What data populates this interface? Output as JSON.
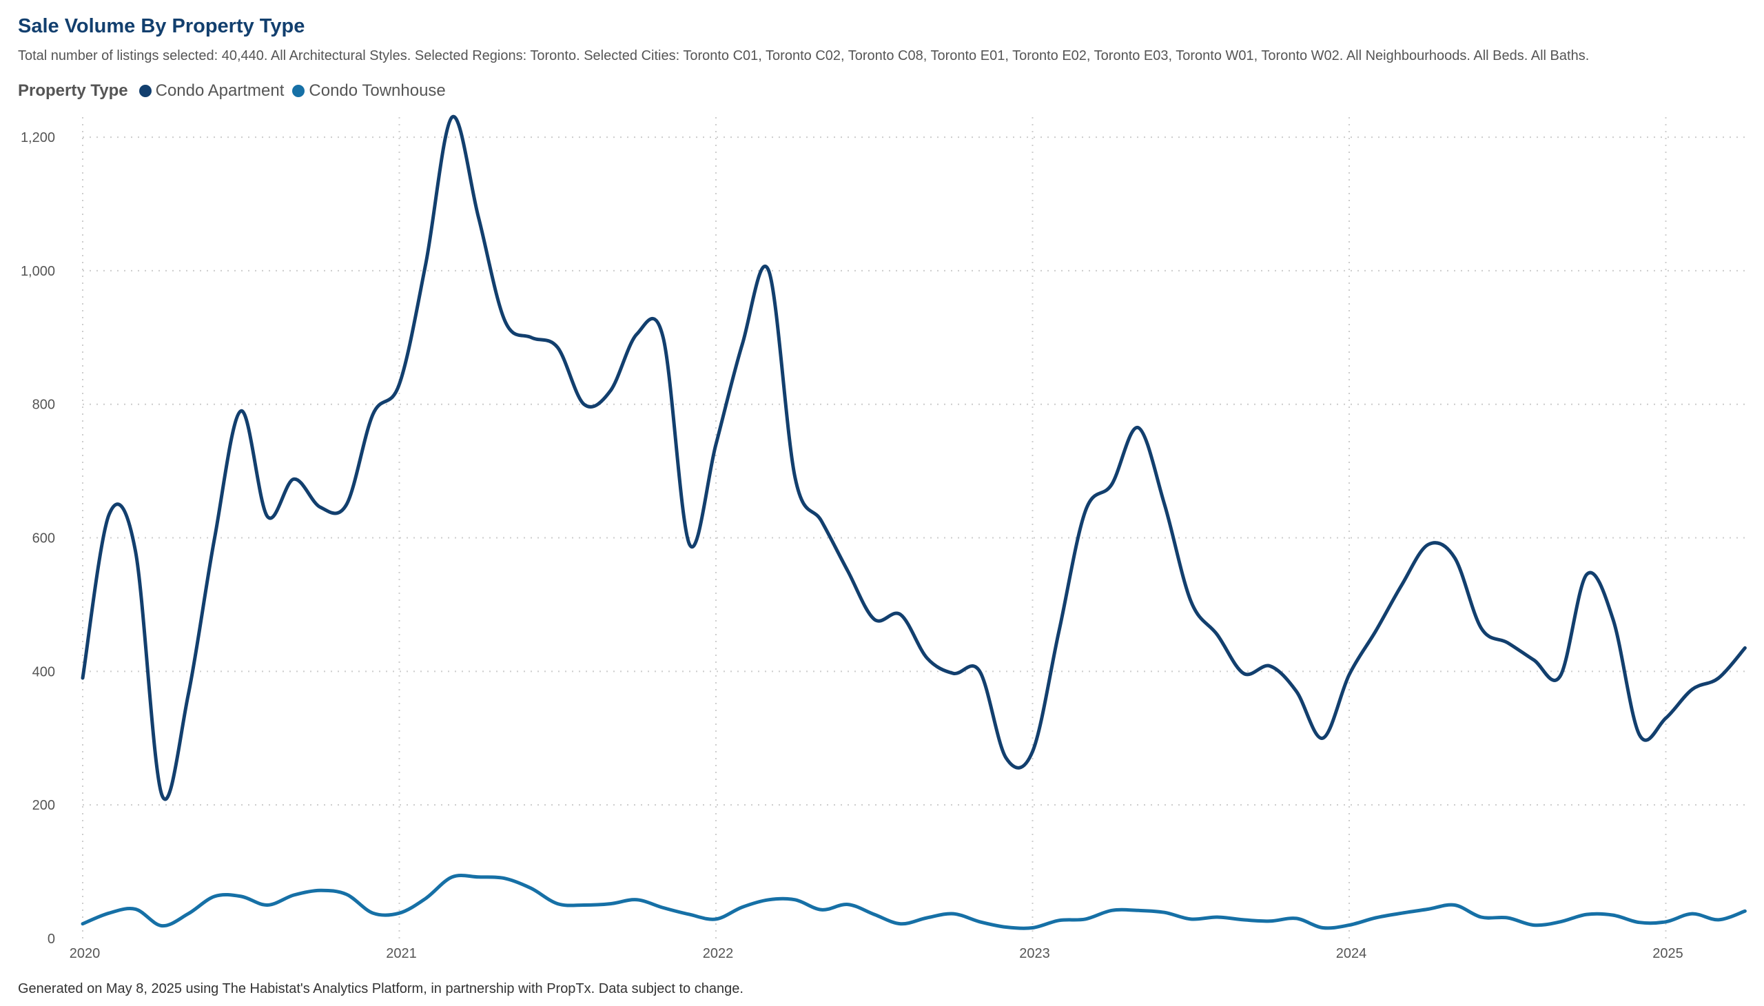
{
  "header": {
    "title": "Sale Volume By Property Type",
    "subtitle": "Total number of listings selected: 40,440. All Architectural Styles. Selected Regions: Toronto. Selected Cities: Toronto C01, Toronto C02, Toronto C08, Toronto E01, Toronto E02, Toronto E03, Toronto W01, Toronto W02. All Neighbourhoods. All Beds. All Baths."
  },
  "legend": {
    "title": "Property Type",
    "placement": "top-left"
  },
  "footer": {
    "text": "Generated on May 8, 2025 using The Habistat's Analytics Platform, in partnership with PropTx. Data subject to change."
  },
  "chart_data": {
    "type": "line",
    "title": "Sale Volume By Property Type",
    "xlabel": "",
    "ylabel": "",
    "grid": true,
    "x_range": [
      "2020-01",
      "2025-04"
    ],
    "ylim": [
      0,
      1230
    ],
    "y_ticks": [
      0,
      200,
      400,
      600,
      800,
      1000,
      1200
    ],
    "y_tick_labels": [
      "0",
      "200",
      "400",
      "600",
      "800",
      "1,000",
      "1,200"
    ],
    "x_tick_labels": [
      "2020",
      "2021",
      "2022",
      "2023",
      "2024",
      "2025"
    ],
    "x": [
      "2020-01",
      "2020-02",
      "2020-03",
      "2020-04",
      "2020-05",
      "2020-06",
      "2020-07",
      "2020-08",
      "2020-09",
      "2020-10",
      "2020-11",
      "2020-12",
      "2021-01",
      "2021-02",
      "2021-03",
      "2021-04",
      "2021-05",
      "2021-06",
      "2021-07",
      "2021-08",
      "2021-09",
      "2021-10",
      "2021-11",
      "2021-12",
      "2022-01",
      "2022-02",
      "2022-03",
      "2022-04",
      "2022-05",
      "2022-06",
      "2022-07",
      "2022-08",
      "2022-09",
      "2022-10",
      "2022-11",
      "2022-12",
      "2023-01",
      "2023-02",
      "2023-03",
      "2023-04",
      "2023-05",
      "2023-06",
      "2023-07",
      "2023-08",
      "2023-09",
      "2023-10",
      "2023-11",
      "2023-12",
      "2024-01",
      "2024-02",
      "2024-03",
      "2024-04",
      "2024-05",
      "2024-06",
      "2024-07",
      "2024-08",
      "2024-09",
      "2024-10",
      "2024-11",
      "2024-12",
      "2025-01",
      "2025-02",
      "2025-03",
      "2025-04"
    ],
    "series": [
      {
        "name": "Condo Apartment",
        "color": "#123f6e",
        "values": [
          390,
          635,
          580,
          215,
          365,
          600,
          790,
          632,
          688,
          646,
          650,
          785,
          830,
          1010,
          1230,
          1080,
          925,
          900,
          885,
          800,
          820,
          905,
          900,
          590,
          740,
          890,
          1000,
          690,
          625,
          550,
          478,
          485,
          420,
          397,
          400,
          270,
          280,
          460,
          640,
          680,
          765,
          650,
          505,
          455,
          397,
          408,
          370,
          300,
          395,
          460,
          530,
          590,
          570,
          465,
          443,
          417,
          393,
          545,
          478,
          305,
          330,
          373,
          390,
          435
        ]
      },
      {
        "name": "Condo Townhouse",
        "color": "#1670a6",
        "values": [
          22,
          38,
          44,
          19,
          37,
          63,
          63,
          50,
          65,
          72,
          66,
          38,
          38,
          60,
          92,
          92,
          90,
          75,
          52,
          50,
          52,
          58,
          46,
          36,
          29,
          47,
          58,
          58,
          43,
          51,
          36,
          22,
          31,
          37,
          25,
          17,
          16,
          27,
          29,
          42,
          42,
          39,
          29,
          32,
          28,
          26,
          30,
          16,
          20,
          31,
          38,
          44,
          50,
          32,
          31,
          20,
          25,
          36,
          35,
          24,
          25,
          37,
          28,
          41
        ]
      }
    ]
  }
}
